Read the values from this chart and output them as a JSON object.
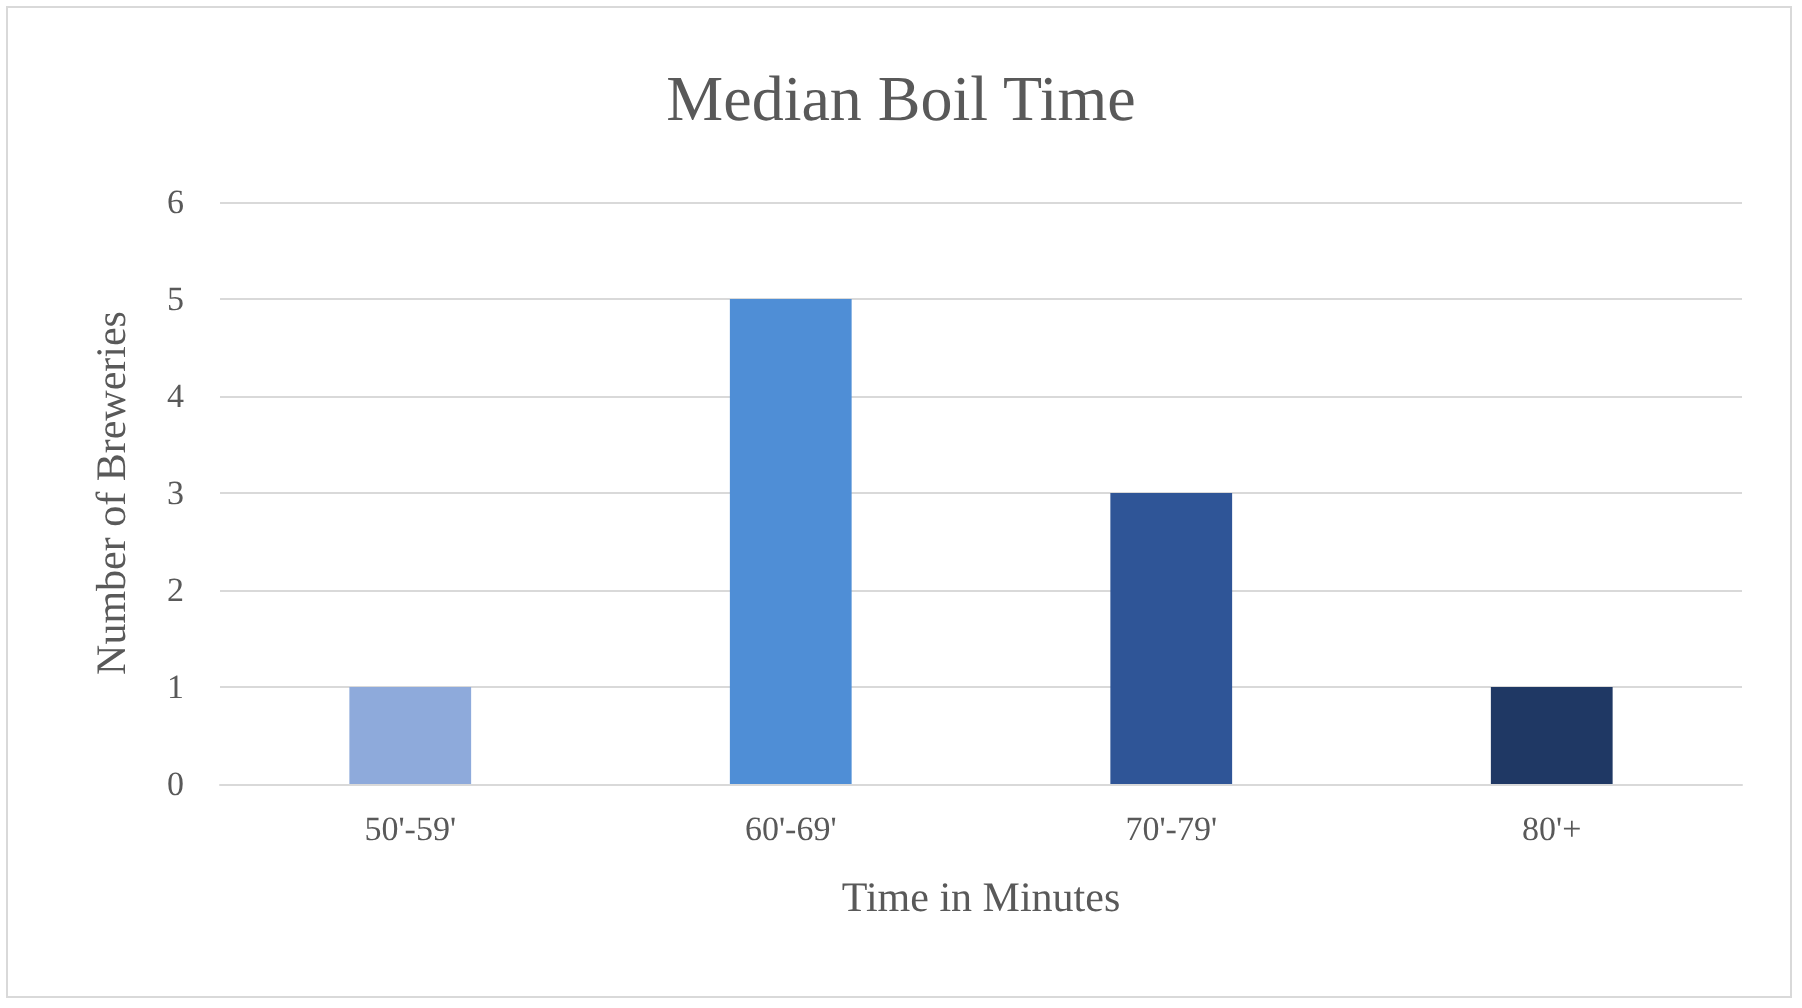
{
  "chart_data": {
    "type": "bar",
    "title": "Median Boil Time",
    "xlabel": "Time in Minutes",
    "ylabel": "Number of Breweries",
    "categories": [
      "50'-59'",
      "60'-69'",
      "70'-79'",
      "80'+"
    ],
    "values": [
      1,
      5,
      3,
      1
    ],
    "colors": [
      "#8eaadb",
      "#4f8ed6",
      "#2f5597",
      "#1f3864"
    ],
    "ylim": [
      0,
      6
    ],
    "yticks": [
      0,
      1,
      2,
      3,
      4,
      5,
      6
    ],
    "grid": "y"
  }
}
